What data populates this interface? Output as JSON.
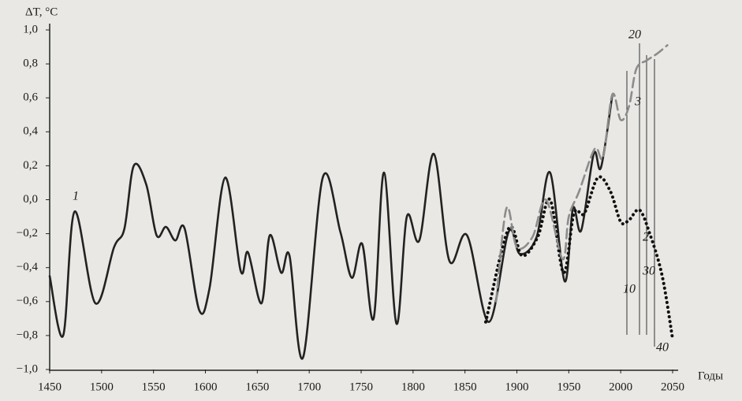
{
  "chart_data": {
    "type": "line",
    "y_label": "ΔT, °C",
    "x_label": "Годы",
    "xlim": [
      1450,
      2050
    ],
    "ylim": [
      -1.0,
      1.0
    ],
    "xticks": [
      1450,
      1500,
      1550,
      1600,
      1650,
      1700,
      1750,
      1800,
      1850,
      1900,
      1950,
      2000,
      2050
    ],
    "yticks": [
      {
        "value": -1.0,
        "label": "−1,0"
      },
      {
        "value": -0.8,
        "label": "−0,8"
      },
      {
        "value": -0.6,
        "label": "−0,6"
      },
      {
        "value": -0.4,
        "label": "−0,4"
      },
      {
        "value": -0.2,
        "label": "−0,2"
      },
      {
        "value": 0.0,
        "label": "0,0"
      },
      {
        "value": 0.2,
        "label": "0,2"
      },
      {
        "value": 0.4,
        "label": "0,4"
      },
      {
        "value": 0.6,
        "label": "0,6"
      },
      {
        "value": 0.8,
        "label": "0,8"
      },
      {
        "value": 1.0,
        "label": "1,0"
      }
    ],
    "series": [
      {
        "name": "1",
        "color": "#222222",
        "style": "solid",
        "x": [
          1450,
          1463,
          1474,
          1494,
          1512,
          1522,
          1531,
          1543,
          1553,
          1562,
          1571,
          1580,
          1594,
          1604,
          1619,
          1634,
          1641,
          1654,
          1662,
          1673,
          1681,
          1694,
          1713,
          1730,
          1741,
          1751,
          1762,
          1772,
          1784,
          1794,
          1806,
          1820,
          1835,
          1852,
          1873,
          1892,
          1903,
          1919,
          1932,
          1946,
          1954,
          1962,
          1974,
          1981,
          1992
        ],
        "values": [
          -0.45,
          -0.8,
          -0.07,
          -0.61,
          -0.28,
          -0.17,
          0.2,
          0.09,
          -0.21,
          -0.16,
          -0.24,
          -0.17,
          -0.65,
          -0.52,
          0.13,
          -0.42,
          -0.31,
          -0.61,
          -0.21,
          -0.43,
          -0.33,
          -0.93,
          0.13,
          -0.19,
          -0.46,
          -0.26,
          -0.7,
          0.16,
          -0.73,
          -0.1,
          -0.24,
          0.27,
          -0.36,
          -0.21,
          -0.72,
          -0.19,
          -0.32,
          -0.22,
          0.16,
          -0.48,
          -0.05,
          -0.18,
          0.27,
          0.19,
          0.62
        ]
      },
      {
        "name": "2",
        "color": "#111111",
        "style": "dotted",
        "x": [
          1870,
          1892,
          1905,
          1920,
          1932,
          1945,
          1955,
          1965,
          1978,
          1990,
          2000,
          2008,
          2018,
          2028,
          2040,
          2050
        ],
        "values": [
          -0.72,
          -0.17,
          -0.33,
          -0.22,
          0.0,
          -0.43,
          -0.08,
          -0.08,
          0.13,
          0.05,
          -0.13,
          -0.12,
          -0.06,
          -0.2,
          -0.45,
          -0.82
        ]
      },
      {
        "name": "3",
        "color": "#8c8c8c",
        "style": "dashed",
        "x": [
          1880,
          1890,
          1900,
          1915,
          1928,
          1944,
          1950,
          1960,
          1975,
          1983,
          1992,
          2000,
          2008,
          2015,
          2025,
          2035,
          2045
        ],
        "values": [
          -0.6,
          -0.05,
          -0.28,
          -0.22,
          0.0,
          -0.35,
          -0.1,
          0.05,
          0.3,
          0.25,
          0.62,
          0.47,
          0.55,
          0.77,
          0.82,
          0.86,
          0.91
        ]
      }
    ],
    "annotations": [
      "10",
      "20",
      "30",
      "40"
    ]
  }
}
